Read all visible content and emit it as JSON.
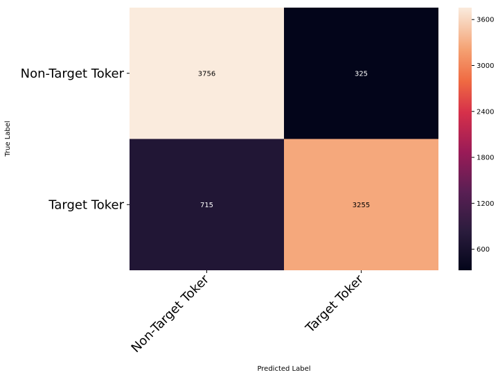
{
  "chart_data": {
    "type": "heatmap",
    "xlabel": "Predicted Label",
    "ylabel": "True Label",
    "x_categories": [
      "Non-Target Toker",
      "Target Toker"
    ],
    "y_categories": [
      "Non-Target Toker",
      "Target Toker"
    ],
    "values": [
      [
        3756,
        325
      ],
      [
        715,
        3255
      ]
    ],
    "colormap": "rocket",
    "colorbar": {
      "ticks": [
        600,
        1200,
        1800,
        2400,
        3000,
        3600
      ],
      "range": [
        325,
        3756
      ]
    },
    "cell_text_colors": {
      "light": "#000000",
      "dark": "#ffffff"
    }
  }
}
